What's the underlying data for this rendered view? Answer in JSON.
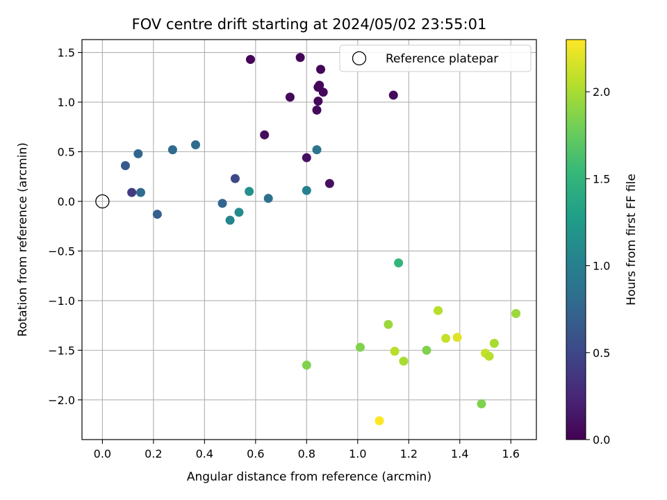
{
  "chart_data": {
    "type": "scatter",
    "title": "FOV centre drift starting at 2024/05/02 23:55:01",
    "xlabel": "Angular distance from reference (arcmin)",
    "ylabel": "Rotation from reference (arcmin)",
    "xlim": [
      -0.08,
      1.7
    ],
    "ylim": [
      -2.4,
      1.63
    ],
    "xticks": [
      0.0,
      0.2,
      0.4,
      0.6,
      0.8,
      1.0,
      1.2,
      1.4,
      1.6
    ],
    "xtick_labels": [
      "0.0",
      "0.2",
      "0.4",
      "0.6",
      "0.8",
      "1.0",
      "1.2",
      "1.4",
      "1.6"
    ],
    "yticks": [
      1.5,
      1.0,
      0.5,
      0.0,
      -0.5,
      -1.0,
      -1.5,
      -2.0
    ],
    "ytick_labels": [
      "1.5",
      "1.0",
      "0.5",
      "0.0",
      "−0.5",
      "−1.0",
      "−1.5",
      "−2.0"
    ],
    "grid": true,
    "colormap": "viridis",
    "colorbar": {
      "label": "Hours from first FF file",
      "range": [
        0.0,
        2.3
      ],
      "ticks": [
        0.0,
        0.5,
        1.0,
        1.5,
        2.0
      ],
      "tick_labels": [
        "0.0",
        "0.5",
        "1.0",
        "1.5",
        "2.0"
      ],
      "stops": [
        "#440154",
        "#482878",
        "#3e4989",
        "#31688e",
        "#26828e",
        "#1f9e89",
        "#35b779",
        "#6ece58",
        "#b5de2b",
        "#fde725"
      ]
    },
    "legend": {
      "position": "top-right",
      "entries": [
        {
          "label": "Reference platepar",
          "marker": "hollow-circle"
        }
      ]
    },
    "reference_point": {
      "x": 0.0,
      "y": 0.0
    },
    "points": [
      {
        "x": 0.58,
        "y": 1.43,
        "hours": 0.02
      },
      {
        "x": 0.775,
        "y": 1.45,
        "hours": 0.02
      },
      {
        "x": 0.855,
        "y": 1.33,
        "hours": 0.03
      },
      {
        "x": 0.845,
        "y": 1.15,
        "hours": 0.03
      },
      {
        "x": 0.85,
        "y": 1.17,
        "hours": 0.04
      },
      {
        "x": 0.865,
        "y": 1.1,
        "hours": 0.04
      },
      {
        "x": 0.735,
        "y": 1.05,
        "hours": 0.05
      },
      {
        "x": 0.845,
        "y": 1.01,
        "hours": 0.05
      },
      {
        "x": 0.84,
        "y": 0.92,
        "hours": 0.06
      },
      {
        "x": 1.14,
        "y": 1.07,
        "hours": 0.06
      },
      {
        "x": 0.635,
        "y": 0.67,
        "hours": 0.08
      },
      {
        "x": 0.8,
        "y": 0.44,
        "hours": 0.1
      },
      {
        "x": 0.89,
        "y": 0.18,
        "hours": 0.1
      },
      {
        "x": 0.115,
        "y": 0.09,
        "hours": 0.4
      },
      {
        "x": 0.52,
        "y": 0.23,
        "hours": 0.5
      },
      {
        "x": 0.09,
        "y": 0.36,
        "hours": 0.65
      },
      {
        "x": 0.14,
        "y": 0.48,
        "hours": 0.75
      },
      {
        "x": 0.275,
        "y": 0.52,
        "hours": 0.8
      },
      {
        "x": 0.365,
        "y": 0.57,
        "hours": 0.82
      },
      {
        "x": 0.15,
        "y": 0.09,
        "hours": 0.8
      },
      {
        "x": 0.215,
        "y": -0.13,
        "hours": 0.7
      },
      {
        "x": 0.47,
        "y": -0.02,
        "hours": 0.75
      },
      {
        "x": 0.65,
        "y": 0.03,
        "hours": 0.85
      },
      {
        "x": 0.84,
        "y": 0.52,
        "hours": 0.9
      },
      {
        "x": 0.8,
        "y": 0.11,
        "hours": 1.0
      },
      {
        "x": 0.5,
        "y": -0.19,
        "hours": 1.05
      },
      {
        "x": 0.535,
        "y": -0.11,
        "hours": 1.1
      },
      {
        "x": 0.575,
        "y": 0.1,
        "hours": 1.15
      },
      {
        "x": 1.16,
        "y": -0.62,
        "hours": 1.5
      },
      {
        "x": 0.8,
        "y": -1.65,
        "hours": 1.85
      },
      {
        "x": 1.01,
        "y": -1.47,
        "hours": 1.85
      },
      {
        "x": 1.12,
        "y": -1.24,
        "hours": 1.95
      },
      {
        "x": 1.145,
        "y": -1.51,
        "hours": 2.05
      },
      {
        "x": 1.18,
        "y": -1.61,
        "hours": 2.0
      },
      {
        "x": 1.27,
        "y": -1.5,
        "hours": 1.85
      },
      {
        "x": 1.315,
        "y": -1.1,
        "hours": 2.05
      },
      {
        "x": 1.345,
        "y": -1.38,
        "hours": 2.1
      },
      {
        "x": 1.39,
        "y": -1.37,
        "hours": 2.2
      },
      {
        "x": 1.085,
        "y": -2.21,
        "hours": 2.3
      },
      {
        "x": 1.485,
        "y": -2.04,
        "hours": 1.85
      },
      {
        "x": 1.5,
        "y": -1.53,
        "hours": 2.1
      },
      {
        "x": 1.515,
        "y": -1.56,
        "hours": 2.05
      },
      {
        "x": 1.535,
        "y": -1.43,
        "hours": 2.0
      },
      {
        "x": 1.62,
        "y": -1.13,
        "hours": 1.95
      }
    ]
  }
}
